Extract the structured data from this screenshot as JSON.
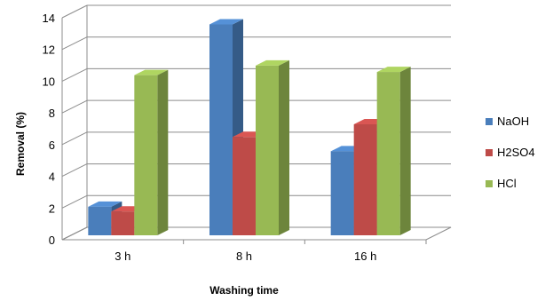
{
  "chart_data": {
    "type": "bar",
    "style": "3d-clustered-column",
    "categories": [
      "3 h",
      "8 h",
      "16 h"
    ],
    "series": [
      {
        "name": "NaOH",
        "values": [
          1.8,
          13.3,
          5.3
        ],
        "color": "#4a7ebb"
      },
      {
        "name": "H2SO4",
        "values": [
          1.5,
          6.2,
          7.0
        ],
        "color": "#be4b48"
      },
      {
        "name": "HCl",
        "values": [
          10.1,
          10.7,
          10.3
        ],
        "color": "#98b954"
      }
    ],
    "title": "",
    "xlabel": "Washing time",
    "ylabel": "Removal (%)",
    "ylim": [
      0,
      14
    ],
    "yticks": [
      0,
      2,
      4,
      6,
      8,
      10,
      12,
      14
    ],
    "grid": true,
    "legend_position": "right"
  }
}
